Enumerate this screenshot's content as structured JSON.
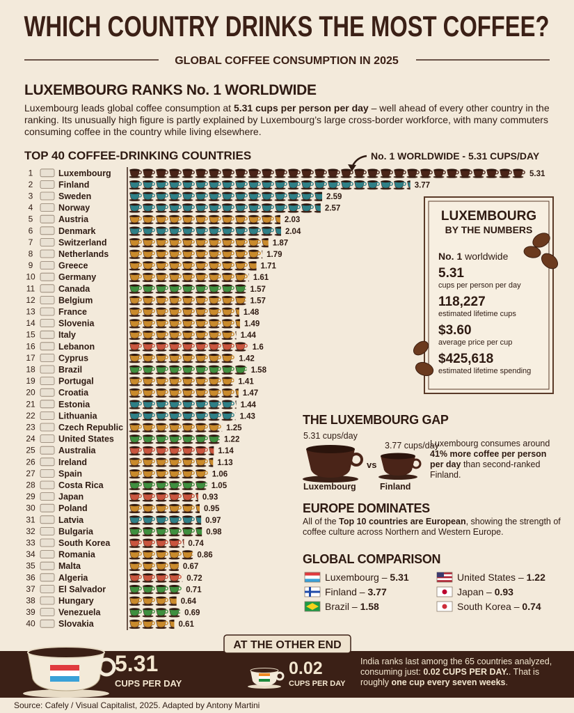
{
  "header": {
    "title": "WHICH COUNTRY DRINKS THE MOST COFFEE?",
    "subtitle": "GLOBAL COFFEE CONSUMPTION IN 2025"
  },
  "intro": {
    "heading": "LUXEMBOURG RANKS No. 1 WORLDWIDE",
    "text": [
      "Luxembourg leads global coffee consumption at ",
      "5.31 cups per person per day",
      " – well ahead of every other country in the ranking. Its unusually high figure is partly explained by Luxembourg’s large cross-border workforce, with many commuters consuming coffee in the country while living elsewhere."
    ]
  },
  "chart_data": {
    "type": "bar",
    "orientation": "horizontal",
    "title": "TOP 40 COFFEE-DRINKING COUNTRIES",
    "annotation": "No. 1 WORLDWIDE - 5.31 CUPS/DAY",
    "ranks": [
      1,
      2,
      3,
      4,
      5,
      6,
      7,
      8,
      9,
      10,
      11,
      12,
      13,
      14,
      15,
      16,
      17,
      18,
      19,
      20,
      21,
      22,
      23,
      24,
      25,
      26,
      27,
      28,
      29,
      30,
      31,
      32,
      33,
      34,
      35,
      36,
      37,
      38,
      39,
      40
    ],
    "categories": [
      "Luxembourg",
      "Finland",
      "Sweden",
      "Norway",
      "Austria",
      "Denmark",
      "Switzerland",
      "Netherlands",
      "Greece",
      "Germany",
      "Canada",
      "Belgium",
      "France",
      "Slovenia",
      "Italy",
      "Lebanon",
      "Cyprus",
      "Brazil",
      "Portugal",
      "Croatia",
      "Estonia",
      "Lithuania",
      "Czech Republic",
      "United States",
      "Australia",
      "Ireland",
      "Spain",
      "Costa Rica",
      "Japan",
      "Poland",
      "Latvia",
      "Bulgaria",
      "South Korea",
      "Romania",
      "Malta",
      "Algeria",
      "El Salvador",
      "Hungary",
      "Venezuela",
      "Slovakia"
    ],
    "values": [
      5.31,
      3.77,
      2.59,
      2.57,
      2.03,
      2.04,
      1.87,
      1.79,
      1.71,
      1.61,
      1.57,
      1.57,
      1.48,
      1.49,
      1.44,
      1.6,
      1.42,
      1.58,
      1.41,
      1.47,
      1.44,
      1.43,
      1.25,
      1.22,
      1.14,
      1.13,
      1.06,
      1.05,
      0.93,
      0.95,
      0.97,
      0.98,
      0.74,
      0.86,
      0.67,
      0.72,
      0.71,
      0.64,
      0.69,
      0.61
    ],
    "colors": [
      "#4a2418",
      "#2e7f86",
      "#2e7f86",
      "#2e7f86",
      "#c98a2c",
      "#2e7f86",
      "#c98a2c",
      "#c98a2c",
      "#c98a2c",
      "#c98a2c",
      "#3f8f3f",
      "#c98a2c",
      "#c98a2c",
      "#c98a2c",
      "#c98a2c",
      "#c9553e",
      "#c98a2c",
      "#3f8f3f",
      "#c98a2c",
      "#c98a2c",
      "#2e7f86",
      "#2e7f86",
      "#c98a2c",
      "#3f8f3f",
      "#c9553e",
      "#c98a2c",
      "#c98a2c",
      "#3f8f3f",
      "#c9553e",
      "#c98a2c",
      "#2e7f86",
      "#3f8f3f",
      "#c9553e",
      "#c98a2c",
      "#c98a2c",
      "#c9553e",
      "#3f8f3f",
      "#c98a2c",
      "#3f8f3f",
      "#c98a2c"
    ]
  },
  "stats_box": {
    "title": "LUXEMBOURG",
    "subtitle": "BY THE NUMBERS",
    "rank": [
      "No. 1",
      " worldwide"
    ],
    "items": [
      {
        "value": "5.31",
        "label": "cups per person per day"
      },
      {
        "value": "118,227",
        "label": "estimated lifetime cups"
      },
      {
        "value": "$3.60",
        "label": "average price per cup"
      },
      {
        "value": "$425,618",
        "label": "estimated lifetime spending"
      }
    ]
  },
  "gap": {
    "heading": "THE LUXEMBOURG GAP",
    "left": {
      "label": "5.31 cups/day",
      "name": "Luxembourg"
    },
    "right": {
      "label": "3.77 cups/day",
      "name": "Finland"
    },
    "vs": "vs",
    "text": [
      "Luxembourg consumes around ",
      "41% more coffee per person per day",
      " than second-ranked Finland."
    ]
  },
  "europe": {
    "heading": "EUROPE DOMINATES",
    "text": [
      "All of the ",
      "Top 10 countries are European",
      ", showing the strength of coffee culture across Northern and Western Europe."
    ]
  },
  "comparison": {
    "heading": "GLOBAL COMPARISON",
    "items": [
      {
        "name": "Luxembourg –",
        "value": "5.31"
      },
      {
        "name": "Finland –",
        "value": "3.77"
      },
      {
        "name": "Brazil –",
        "value": "1.58"
      },
      {
        "name": "United States –",
        "value": "1.22"
      },
      {
        "name": "Japan –",
        "value": "0.93"
      },
      {
        "name": "South Korea –",
        "value": "0.74"
      }
    ]
  },
  "other_end": {
    "heading": "AT THE OTHER END",
    "top_value": "5.31",
    "top_unit": "CUPS PER DAY",
    "low_value": "0.02",
    "low_unit": "CUPS PER DAY",
    "text": [
      "India ranks last among the 65 countries analyzed, consuming just: ",
      "0.02 CUPS PER DAY.",
      ". That is roughly ",
      "one cup every seven weeks",
      "."
    ]
  },
  "source": "Source: Cafely / Visual Capitalist, 2025. Adapted by Antony Martini"
}
